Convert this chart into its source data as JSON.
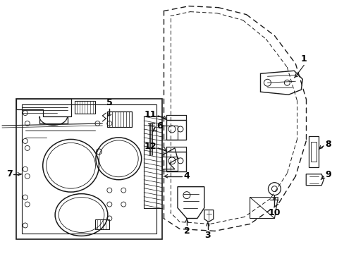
{
  "background_color": "#ffffff",
  "line_color": "#1a1a1a",
  "label_color": "#000000",
  "fig_width": 4.89,
  "fig_height": 3.6,
  "dpi": 100
}
